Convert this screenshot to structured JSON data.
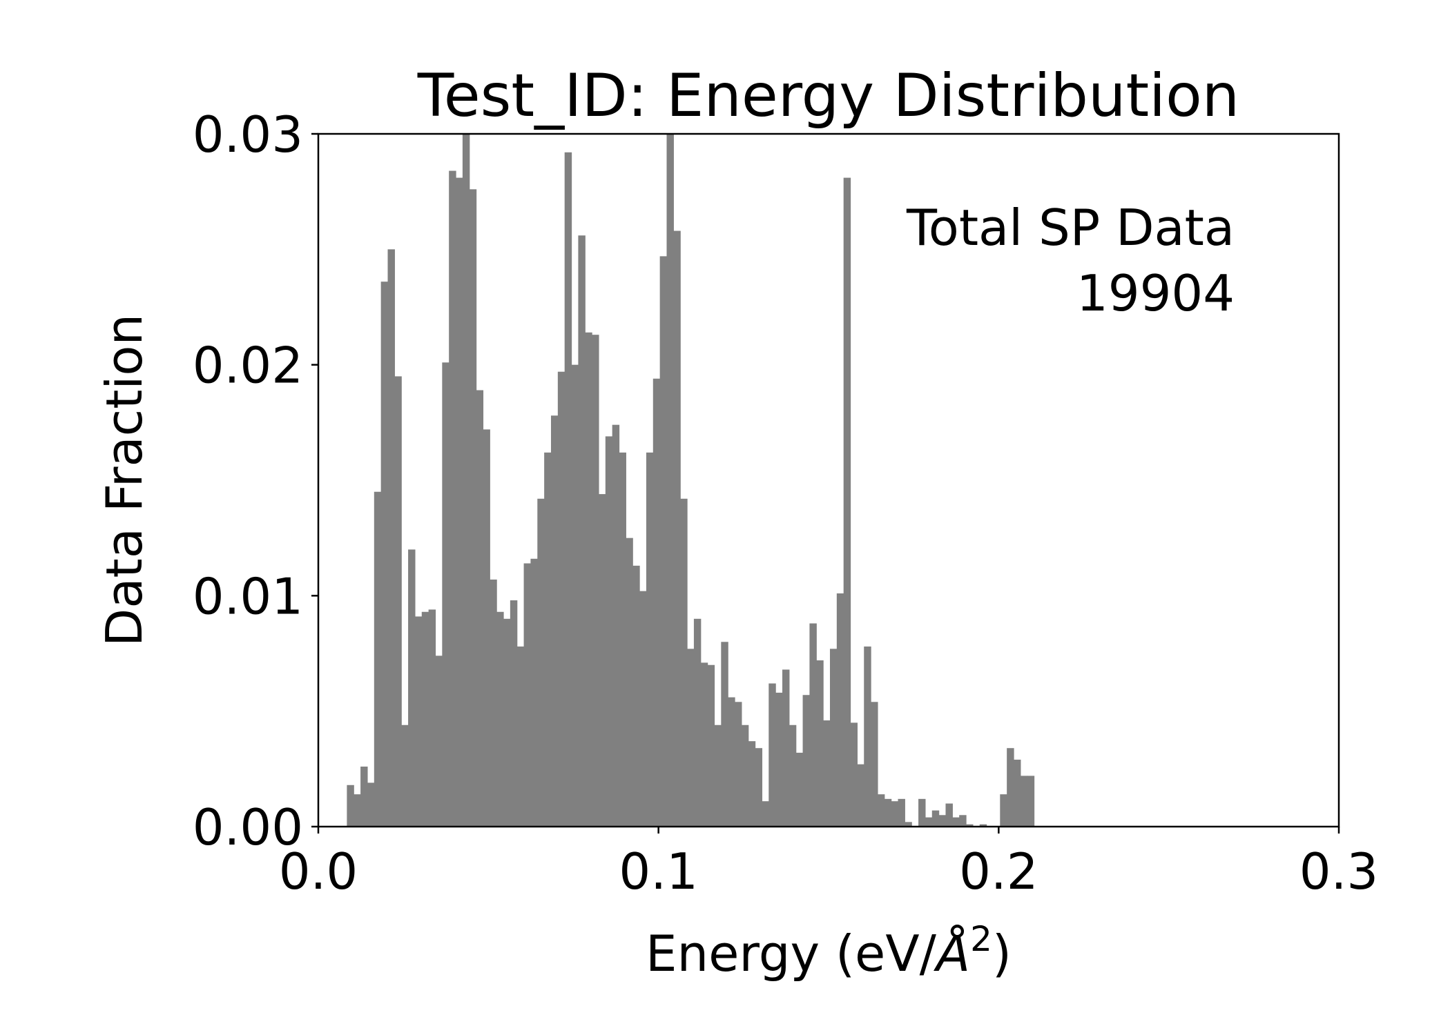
{
  "chart_data": {
    "type": "bar",
    "title": "Test_ID: Energy Distribution",
    "xlabel": "Energy (eV/Å²)",
    "xlabel_parts": {
      "prefix": "Energy (eV/",
      "symbol": "Å",
      "exponent": "2",
      "suffix": ")"
    },
    "ylabel": "Data Fraction",
    "xlim": [
      0.0,
      0.3
    ],
    "ylim": [
      0.0,
      0.03
    ],
    "xticks": [
      0.0,
      0.1,
      0.2,
      0.3
    ],
    "xtick_labels": [
      "0.0",
      "0.1",
      "0.2",
      "0.3"
    ],
    "yticks": [
      0.0,
      0.01,
      0.02,
      0.03
    ],
    "ytick_labels": [
      "0.00",
      "0.01",
      "0.02",
      "0.03"
    ],
    "grid": false,
    "bar_color": "#808080",
    "bin_width": 0.002,
    "bin_start": 0.0084,
    "values": [
      0.0018,
      0.0014,
      0.0026,
      0.0019,
      0.0145,
      0.0236,
      0.025,
      0.0195,
      0.0044,
      0.012,
      0.0091,
      0.0093,
      0.0094,
      0.0074,
      0.0201,
      0.0284,
      0.0281,
      0.0302,
      0.0276,
      0.0189,
      0.0172,
      0.0107,
      0.0093,
      0.009,
      0.0098,
      0.0078,
      0.0114,
      0.0116,
      0.0142,
      0.0162,
      0.0178,
      0.0197,
      0.0292,
      0.02,
      0.0256,
      0.0214,
      0.0213,
      0.0144,
      0.0169,
      0.0174,
      0.0162,
      0.0125,
      0.0113,
      0.0102,
      0.0162,
      0.0194,
      0.0247,
      0.0305,
      0.0258,
      0.0142,
      0.0077,
      0.009,
      0.0071,
      0.007,
      0.0044,
      0.008,
      0.0056,
      0.0054,
      0.0044,
      0.0037,
      0.0034,
      0.0011,
      0.0062,
      0.0058,
      0.0068,
      0.0044,
      0.0032,
      0.0057,
      0.0088,
      0.0072,
      0.0046,
      0.0077,
      0.0101,
      0.0281,
      0.0045,
      0.0027,
      0.0078,
      0.0054,
      0.0014,
      0.0012,
      0.0011,
      0.0012,
      0.0002,
      0.0,
      0.0012,
      0.0004,
      0.0007,
      0.0005,
      0.001,
      0.0004,
      0.0005,
      0.0001,
      0.0,
      0.0001,
      0.0,
      0.0,
      0.0014,
      0.0034,
      0.0029,
      0.0022,
      0.0022
    ],
    "annotation": {
      "text": "Total SP Data",
      "value": "19904",
      "placement": "top-right"
    },
    "legend": "none"
  }
}
